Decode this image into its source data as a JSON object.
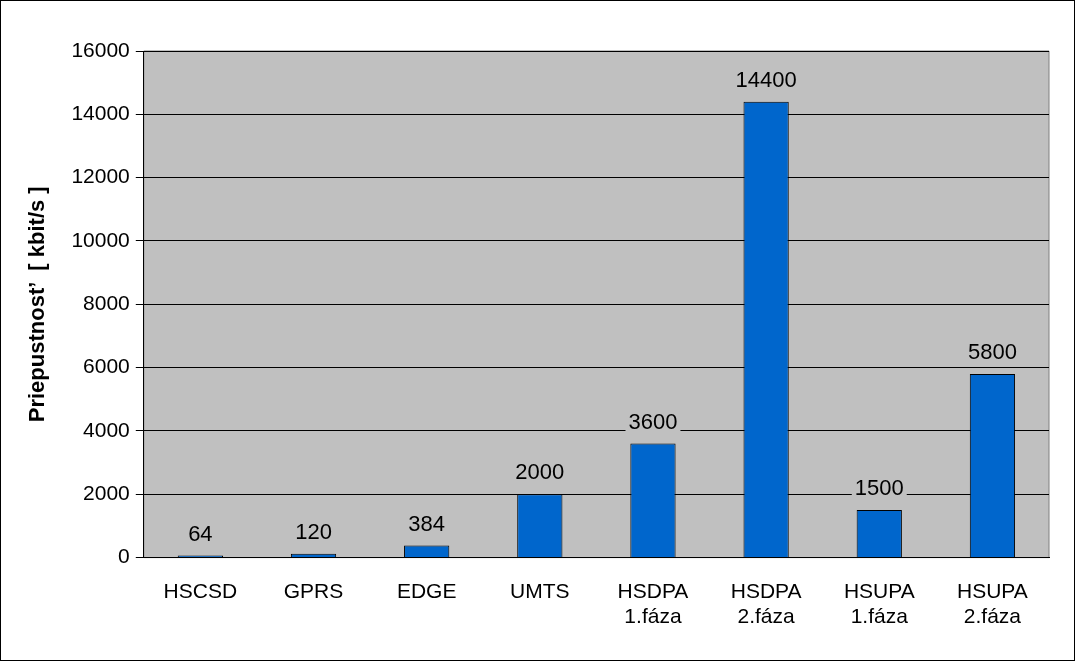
{
  "chart_data": {
    "type": "bar",
    "ylabel": "Priepustnost’  [ kbit/s ]",
    "categories": [
      "HSCSD",
      "GPRS",
      "EDGE",
      "UMTS",
      "HSDPA\n1.fáza",
      "HSDPA\n2.fáza",
      "HSUPA\n1.fáza",
      "HSUPA\n2.fáza"
    ],
    "values": [
      64,
      120,
      384,
      2000,
      3600,
      14400,
      1500,
      5800
    ],
    "color": "#0066cc",
    "ylim": [
      0,
      16000
    ],
    "yticks": [
      0,
      2000,
      4000,
      6000,
      8000,
      10000,
      12000,
      14000,
      16000
    ],
    "grid": "y",
    "data_labels": true,
    "legend": false
  }
}
